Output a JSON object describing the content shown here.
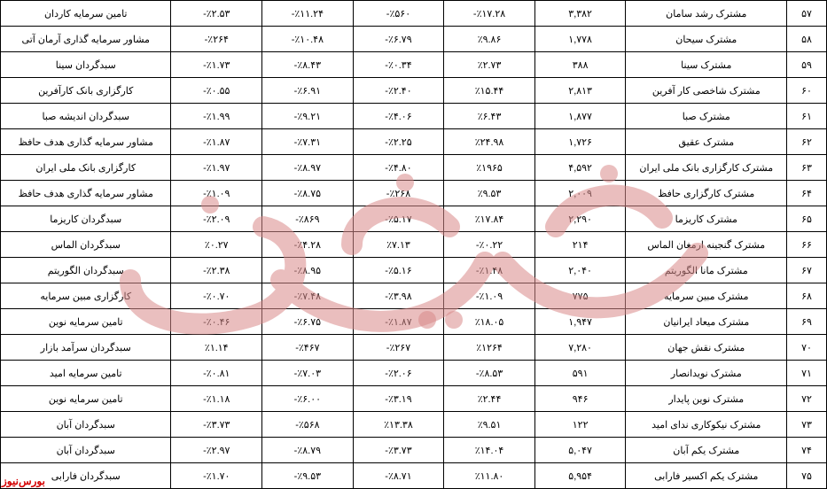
{
  "watermark_color": "#d98a8a",
  "logo_color": "#d40000",
  "logo_text": "بورس‌نیوز",
  "columns": [
    "#",
    "name",
    "v1",
    "v2",
    "v3",
    "v4",
    "v5",
    "manager"
  ],
  "rows": [
    {
      "idx": "۵۷",
      "name": "مشترک رشد سامان",
      "v1": "۳,۳۸۲",
      "v2": "٪۱۷.۲۸-",
      "v3": "٪۵۶۰-",
      "v4": "٪۱۱.۲۴-",
      "v5": "٪۲.۵۳-",
      "mgr": "تامین سرمایه کاردان"
    },
    {
      "idx": "۵۸",
      "name": "مشترک سیحان",
      "v1": "۱,۷۷۸",
      "v2": "٪۹.۸۶",
      "v3": "٪۶.۷۹-",
      "v4": "٪۱۰.۴۸-",
      "v5": "٪۲۶۴-",
      "mgr": "مشاور سرمایه گذاری آرمان آتی"
    },
    {
      "idx": "۵۹",
      "name": "مشترک سینا",
      "v1": "۳۸۸",
      "v2": "٪۲.۷۳",
      "v3": "٪۰.۳۴-",
      "v4": "٪۸.۴۳-",
      "v5": "٪۱.۷۳-",
      "mgr": "سبدگردان سینا"
    },
    {
      "idx": "۶۰",
      "name": "مشترک شاخصی کار آفرین",
      "v1": "۲,۸۱۳",
      "v2": "٪۱۵.۴۴",
      "v3": "٪۲.۴۰-",
      "v4": "٪۶.۹۱-",
      "v5": "٪۰.۵۵-",
      "mgr": "کارگزاری بانک کارآفرین"
    },
    {
      "idx": "۶۱",
      "name": "مشترک صبا",
      "v1": "۱,۸۷۷",
      "v2": "٪۶.۴۳",
      "v3": "٪۴.۰۶-",
      "v4": "٪۹.۲۱-",
      "v5": "٪۱.۹۹-",
      "mgr": "سبدگردان اندیشه صبا"
    },
    {
      "idx": "۶۲",
      "name": "مشترک عقیق",
      "v1": "۱,۷۲۶",
      "v2": "٪۲۴.۹۸",
      "v3": "٪۲.۲۵-",
      "v4": "٪۷.۳۱-",
      "v5": "٪۱.۸۷-",
      "mgr": "مشاور سرمایه گذاری هدف حافظ"
    },
    {
      "idx": "۶۳",
      "name": "مشترک کارگزاری بانک ملی ایران",
      "v1": "۴,۵۹۲",
      "v2": "٪۱۹۶۵",
      "v3": "٪۴.۸۰-",
      "v4": "٪۸.۹۷-",
      "v5": "٪۱.۹۷-",
      "mgr": "کارگزاری بانک ملی ایران"
    },
    {
      "idx": "۶۴",
      "name": "مشترک کارگزاری حافظ",
      "v1": "۲,۰۰۹",
      "v2": "٪۹.۵۳",
      "v3": "٪۲۶۸-",
      "v4": "٪۸.۷۵-",
      "v5": "٪۱.۰۹-",
      "mgr": "مشاور سرمایه گذاری هدف حافظ"
    },
    {
      "idx": "۶۵",
      "name": "مشترک کاریزما",
      "v1": "۲,۲۹۰",
      "v2": "٪۱۷.۸۴",
      "v3": "٪۵.۱۷-",
      "v4": "٪۸۶۹-",
      "v5": "٪۲.۰۹-",
      "mgr": "سبدگردان کاریزما"
    },
    {
      "idx": "۶۶",
      "name": "مشترک گنجینه ارمغان الماس",
      "v1": "۲۱۴",
      "v2": "٪۰.۲۲-",
      "v3": "٪۷.۱۳",
      "v4": "٪۴.۲۸-",
      "v5": "٪۰.۲۷",
      "mgr": "سبدگردان الماس"
    },
    {
      "idx": "۶۷",
      "name": "مشترک مانا الگوریتم",
      "v1": "۲,۰۴۰",
      "v2": "٪۱.۴۸-",
      "v3": "٪۵.۱۶-",
      "v4": "٪۸.۹۵-",
      "v5": "٪۲.۳۸-",
      "mgr": "سبدگردان الگوریتم"
    },
    {
      "idx": "۶۸",
      "name": "مشترک مبین سرمایه",
      "v1": "۷۷۵",
      "v2": "٪۱.۰۹-",
      "v3": "٪۳.۹۸-",
      "v4": "٪۷.۴۸-",
      "v5": "٪۰.۷۰-",
      "mgr": "کارگزاری مبین سرمایه"
    },
    {
      "idx": "۶۹",
      "name": "مشترک میعاد ایرانیان",
      "v1": "۱,۹۴۷",
      "v2": "٪۱۸.۰۵",
      "v3": "٪۱.۸۷-",
      "v4": "٪۶.۷۵-",
      "v5": "٪۰.۴۶-",
      "mgr": "تامین سرمایه نوین"
    },
    {
      "idx": "۷۰",
      "name": "مشترک نقش جهان",
      "v1": "۷,۲۸۰",
      "v2": "٪۱۲۶۴",
      "v3": "٪۲۶۷-",
      "v4": "٪۴۶۷-",
      "v5": "٪۱.۱۴",
      "mgr": "سبدگردان سرآمد بازار"
    },
    {
      "idx": "۷۱",
      "name": "مشترک نویدانصار",
      "v1": "۵۹۱",
      "v2": "٪۸.۵۳-",
      "v3": "٪۲.۰۶-",
      "v4": "٪۷.۰۳-",
      "v5": "٪۰.۸۱-",
      "mgr": "تامین سرمایه امید"
    },
    {
      "idx": "۷۲",
      "name": "مشترک نوین پایدار",
      "v1": "۹۴۶",
      "v2": "٪۲.۴۴",
      "v3": "٪۳.۱۹-",
      "v4": "٪۶.۰۰-",
      "v5": "٪۱.۱۸-",
      "mgr": "تامین سرمایه نوین"
    },
    {
      "idx": "۷۳",
      "name": "مشترک نیکوکاری ندای امید",
      "v1": "۱۲۲",
      "v2": "٪۹.۵۱",
      "v3": "٪۱۳.۳۸",
      "v4": "٪۵۶۸-",
      "v5": "٪۳.۷۳-",
      "mgr": "سبدگردان آبان"
    },
    {
      "idx": "۷۴",
      "name": "مشترک یکم آبان",
      "v1": "۵,۰۴۷",
      "v2": "٪۱۴.۰۴",
      "v3": "٪۳.۷۳-",
      "v4": "٪۸.۷۹-",
      "v5": "٪۲.۹۷-",
      "mgr": "سبدگردان آبان"
    },
    {
      "idx": "۷۵",
      "name": "مشترک یکم اکسیر فارابی",
      "v1": "۵,۹۵۴",
      "v2": "٪۱۱.۸۰",
      "v3": "٪۸.۷۱-",
      "v4": "٪۹.۵۳-",
      "v5": "٪۱.۷۰-",
      "mgr": "سبدگردان فارابی"
    }
  ]
}
